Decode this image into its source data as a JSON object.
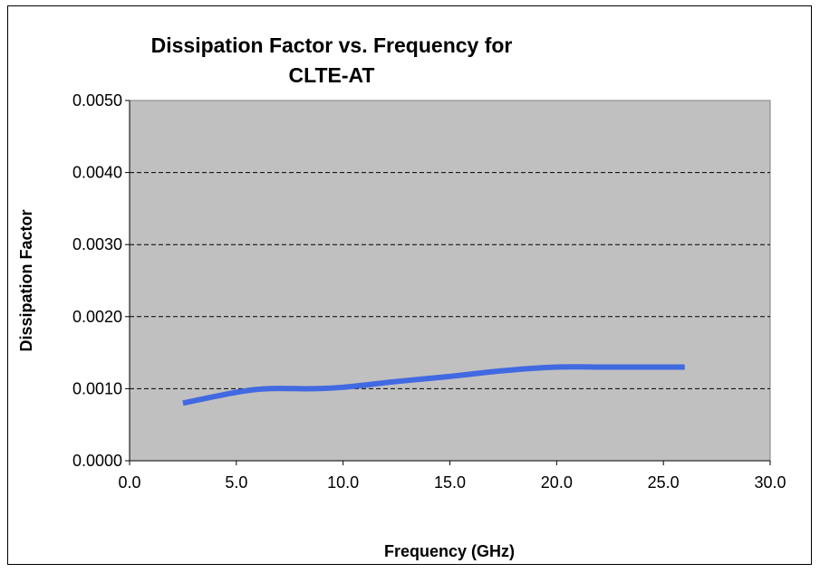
{
  "chart_data": {
    "type": "line",
    "title_lines": [
      "Dissipation Factor vs. Frequency for",
      "CLTE-AT"
    ],
    "xlabel": "Frequency (GHz)",
    "ylabel": "Dissipation Factor",
    "xlim": [
      0,
      30
    ],
    "ylim": [
      0,
      0.005
    ],
    "x_ticks": [
      "0.0",
      "5.0",
      "10.0",
      "15.0",
      "20.0",
      "25.0",
      "30.0"
    ],
    "y_ticks": [
      "0.0000",
      "0.0010",
      "0.0020",
      "0.0030",
      "0.0040",
      "0.0050"
    ],
    "grid": "horizontal dashed",
    "plot_background": "#c0c0c0",
    "series": [
      {
        "color": "#4169e1",
        "x": [
          2.5,
          5.0,
          6.5,
          8.5,
          10.0,
          12.5,
          15.0,
          17.5,
          20.0,
          22.5,
          26.0
        ],
        "y": [
          0.0008,
          0.00095,
          0.001,
          0.001,
          0.00102,
          0.0011,
          0.00117,
          0.00125,
          0.0013,
          0.0013,
          0.0013
        ]
      }
    ]
  }
}
